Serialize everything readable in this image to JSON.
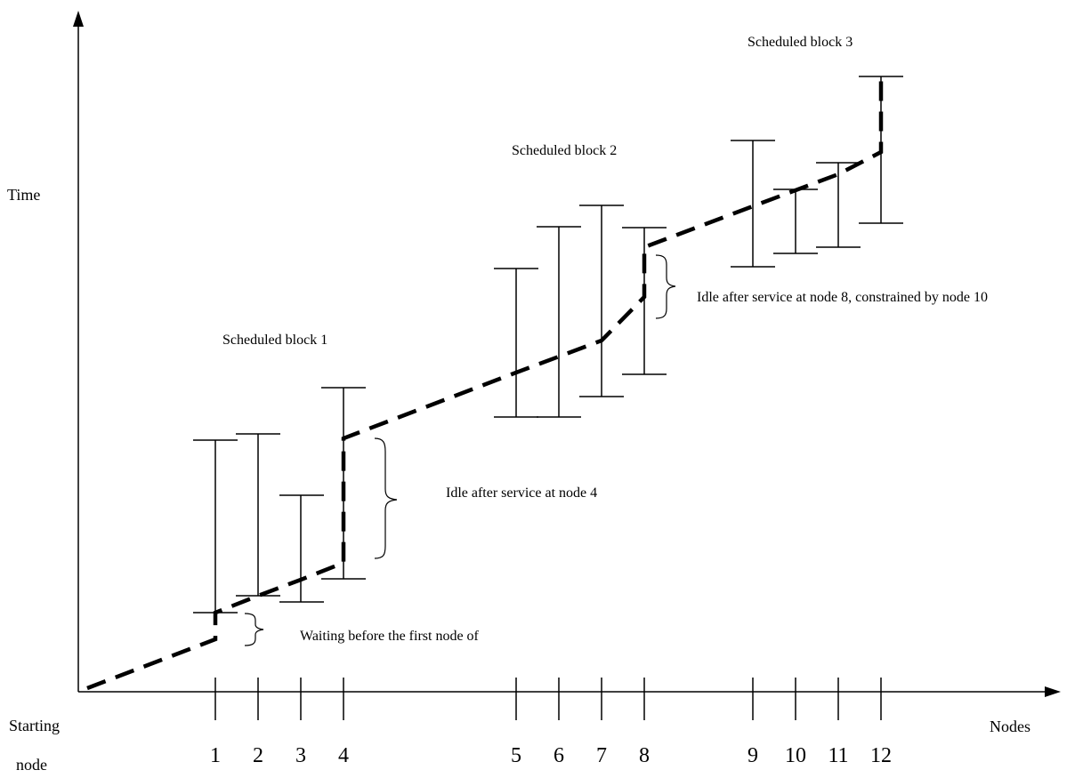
{
  "axes": {
    "y_label": "Time",
    "x_label": "Nodes",
    "origin_label_line1": "Starting",
    "origin_label_line2": "node"
  },
  "nodes": [
    "1",
    "2",
    "3",
    "4",
    "5",
    "6",
    "7",
    "8",
    "9",
    "10",
    "11",
    "12"
  ],
  "blocks": [
    {
      "label": "Scheduled block 1"
    },
    {
      "label": "Scheduled block 2"
    },
    {
      "label": "Scheduled block 3"
    }
  ],
  "annotations": {
    "waiting": "Waiting before the first node of",
    "idle_node4": "Idle after service at node 4",
    "idle_node8": "Idle after service at node 8, constrained by node 10"
  },
  "colors": {
    "line": "#000000",
    "background": "#ffffff"
  }
}
